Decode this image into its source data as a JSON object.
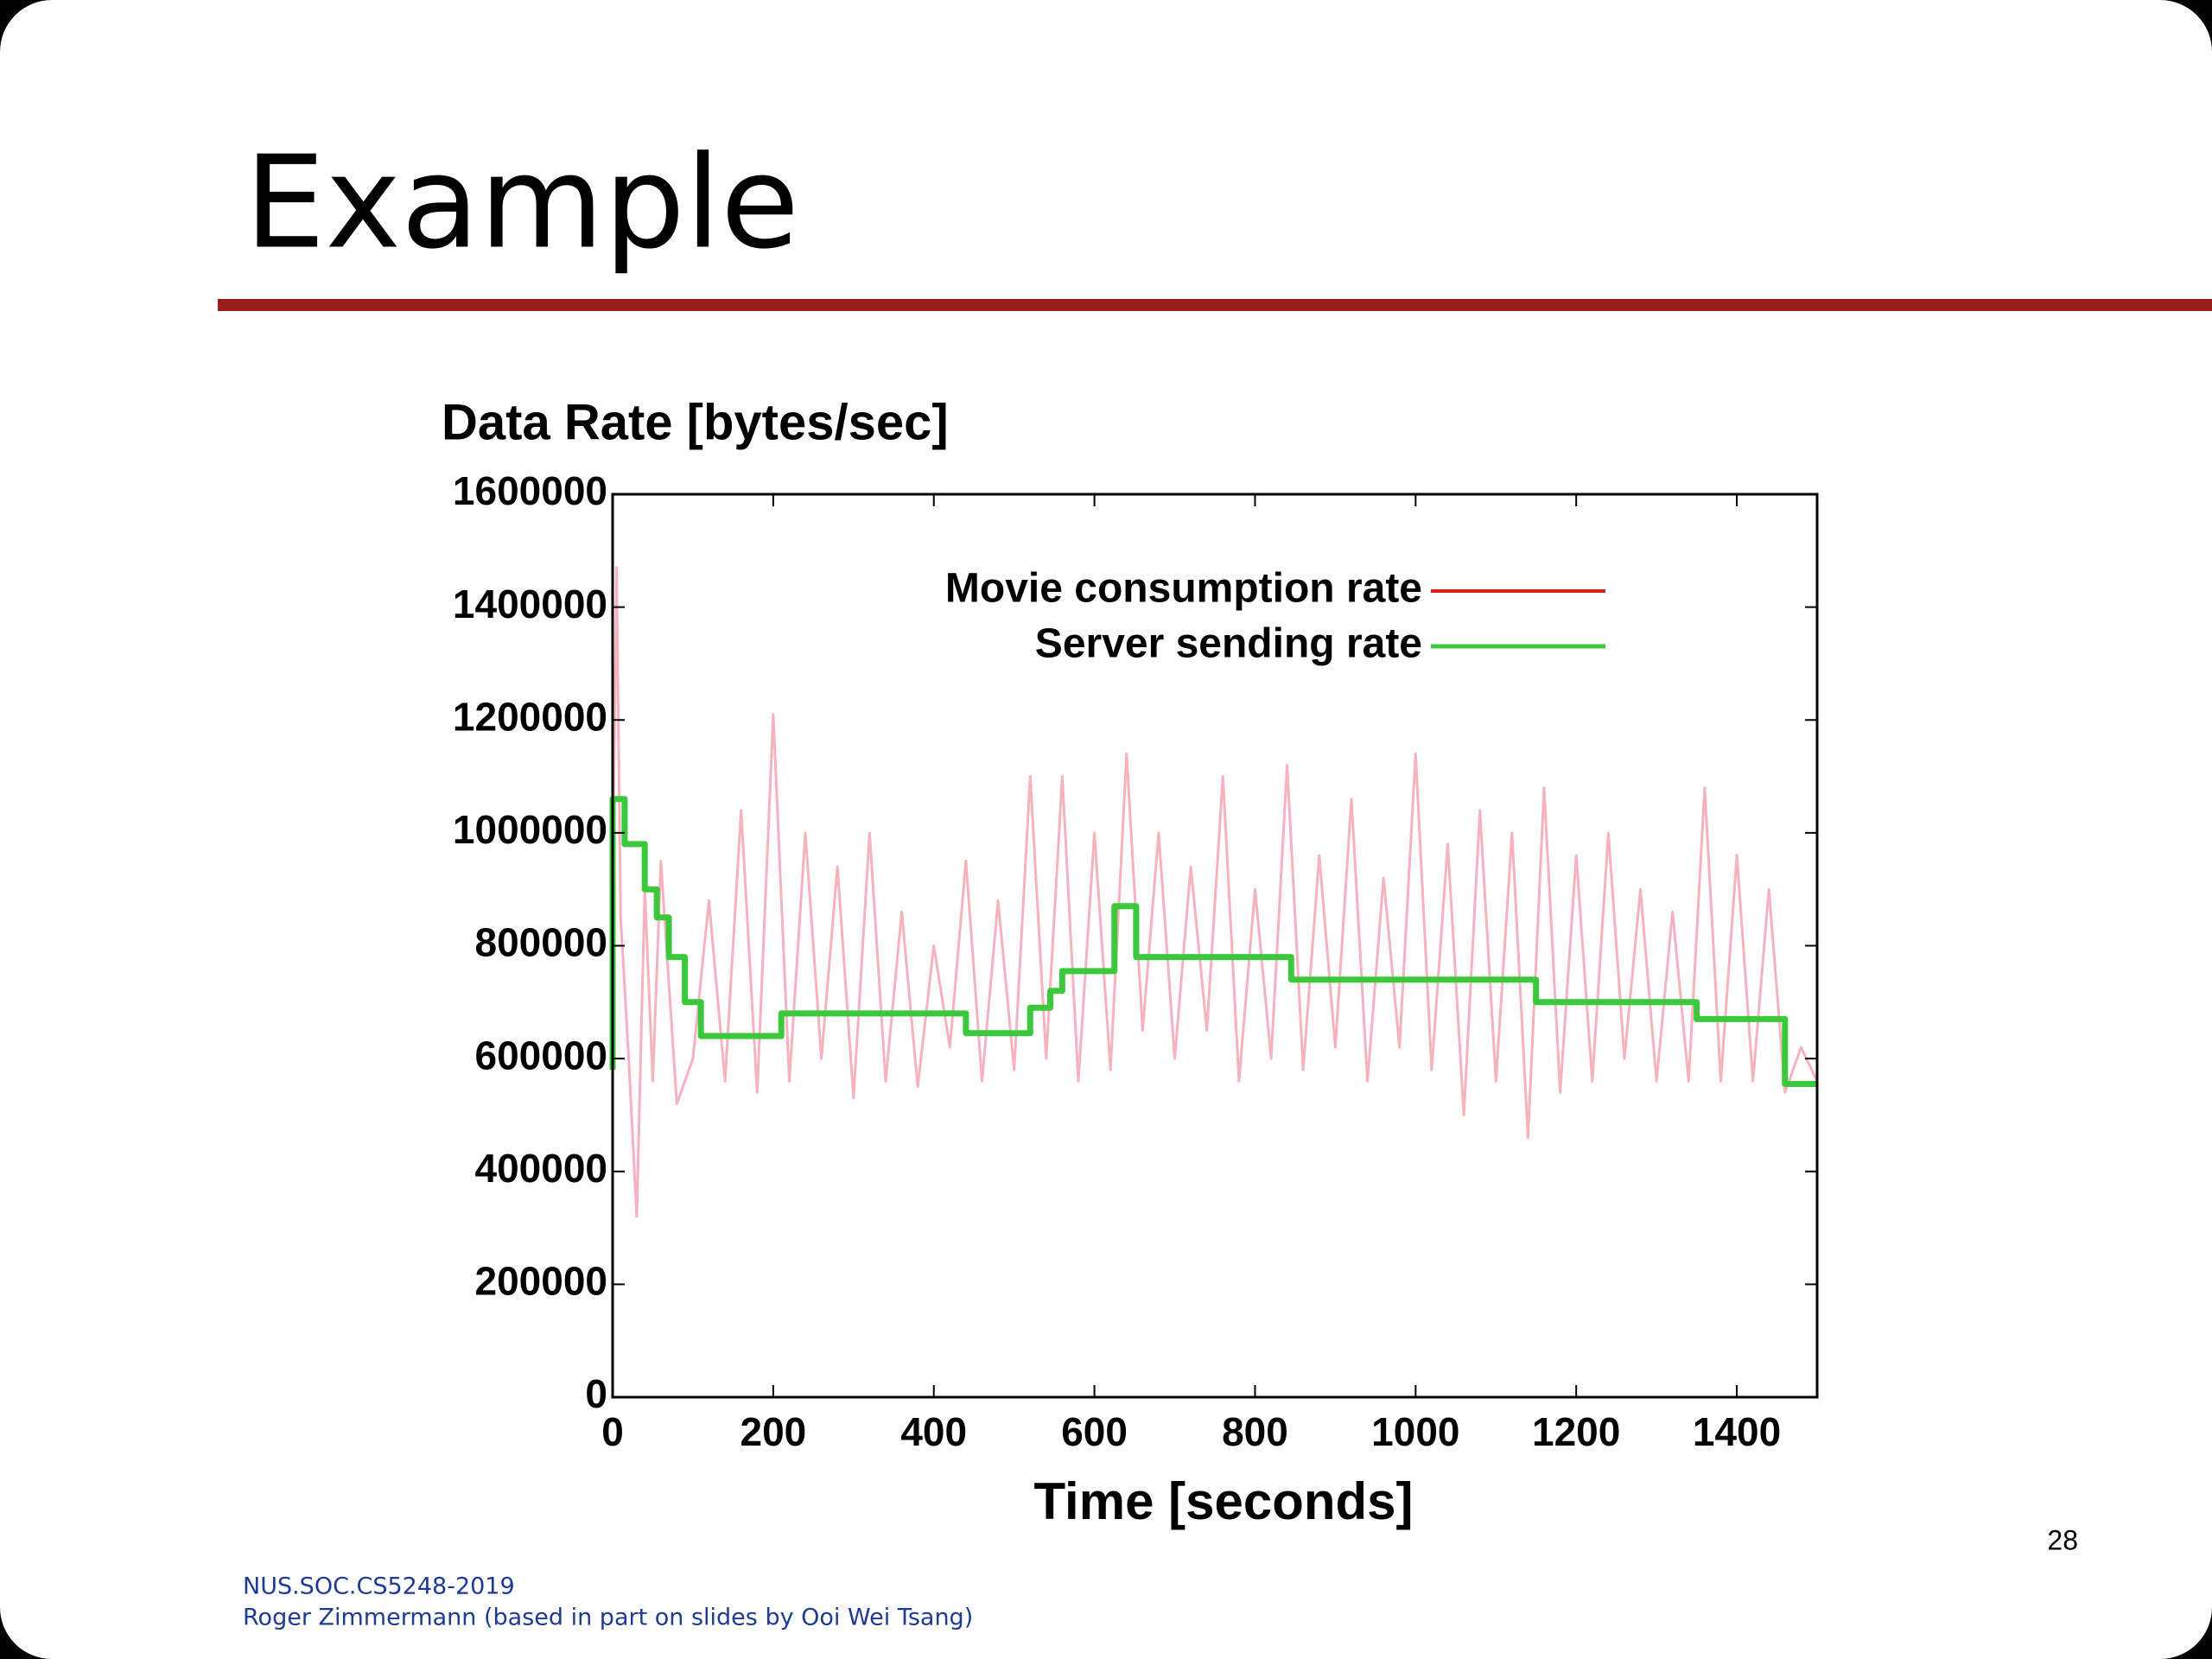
{
  "slide": {
    "title": "Example",
    "page_number": "28",
    "footer": [
      "NUS.SOC.CS5248-2019",
      "Roger Zimmermann (based in part on slides by Ooi Wei Tsang)"
    ]
  },
  "chart_data": {
    "type": "line",
    "title": "Data Rate [bytes/sec]",
    "x_label": "Time [seconds]",
    "xlim": [
      0,
      1500
    ],
    "xticks": [
      0,
      200,
      400,
      600,
      800,
      1000,
      1200,
      1400
    ],
    "ylim": [
      0,
      1600000
    ],
    "yticks": [
      0,
      200000,
      400000,
      600000,
      800000,
      1000000,
      1200000,
      1400000,
      1600000
    ],
    "legend": "upper right",
    "series": [
      {
        "name": "Movie consumption rate",
        "color": "#f6b3bd",
        "legend_color": "#d42020",
        "x": [
          0,
          5,
          10,
          20,
          30,
          40,
          50,
          60,
          80,
          100,
          120,
          140,
          160,
          180,
          200,
          220,
          240,
          260,
          280,
          300,
          320,
          340,
          360,
          380,
          400,
          420,
          440,
          460,
          480,
          500,
          520,
          540,
          560,
          580,
          600,
          620,
          640,
          660,
          680,
          700,
          720,
          740,
          760,
          780,
          800,
          820,
          840,
          860,
          880,
          900,
          920,
          940,
          960,
          980,
          1000,
          1020,
          1040,
          1060,
          1080,
          1100,
          1120,
          1140,
          1160,
          1180,
          1200,
          1220,
          1240,
          1260,
          1280,
          1300,
          1320,
          1340,
          1360,
          1380,
          1400,
          1420,
          1440,
          1460,
          1480,
          1500
        ],
        "values": [
          900000,
          1470000,
          850000,
          600000,
          320000,
          900000,
          560000,
          950000,
          520000,
          600000,
          880000,
          560000,
          1040000,
          540000,
          1210000,
          560000,
          1000000,
          600000,
          940000,
          530000,
          1000000,
          560000,
          860000,
          550000,
          800000,
          620000,
          950000,
          560000,
          880000,
          580000,
          1100000,
          600000,
          1100000,
          560000,
          1000000,
          580000,
          1140000,
          650000,
          1000000,
          600000,
          940000,
          650000,
          1100000,
          560000,
          900000,
          600000,
          1120000,
          580000,
          960000,
          620000,
          1060000,
          560000,
          920000,
          620000,
          1140000,
          580000,
          980000,
          500000,
          1040000,
          560000,
          1000000,
          460000,
          1080000,
          540000,
          960000,
          560000,
          1000000,
          600000,
          900000,
          560000,
          860000,
          560000,
          1080000,
          560000,
          960000,
          560000,
          900000,
          540000,
          620000,
          560000
        ]
      },
      {
        "name": "Server sending rate",
        "color": "#3cc83c",
        "legend_color": "#3cc83c",
        "x": [
          0,
          0,
          15,
          15,
          40,
          40,
          55,
          55,
          70,
          70,
          90,
          90,
          110,
          110,
          210,
          210,
          440,
          440,
          520,
          520,
          545,
          545,
          560,
          560,
          625,
          625,
          652,
          652,
          845,
          845,
          1150,
          1150,
          1350,
          1350,
          1460,
          1460,
          1500
        ],
        "values": [
          580000,
          1060000,
          1060000,
          980000,
          980000,
          900000,
          900000,
          850000,
          850000,
          780000,
          780000,
          700000,
          700000,
          640000,
          640000,
          680000,
          680000,
          645000,
          645000,
          690000,
          690000,
          720000,
          720000,
          755000,
          755000,
          870000,
          870000,
          780000,
          780000,
          740000,
          740000,
          700000,
          700000,
          670000,
          670000,
          555000,
          555000
        ]
      }
    ]
  }
}
